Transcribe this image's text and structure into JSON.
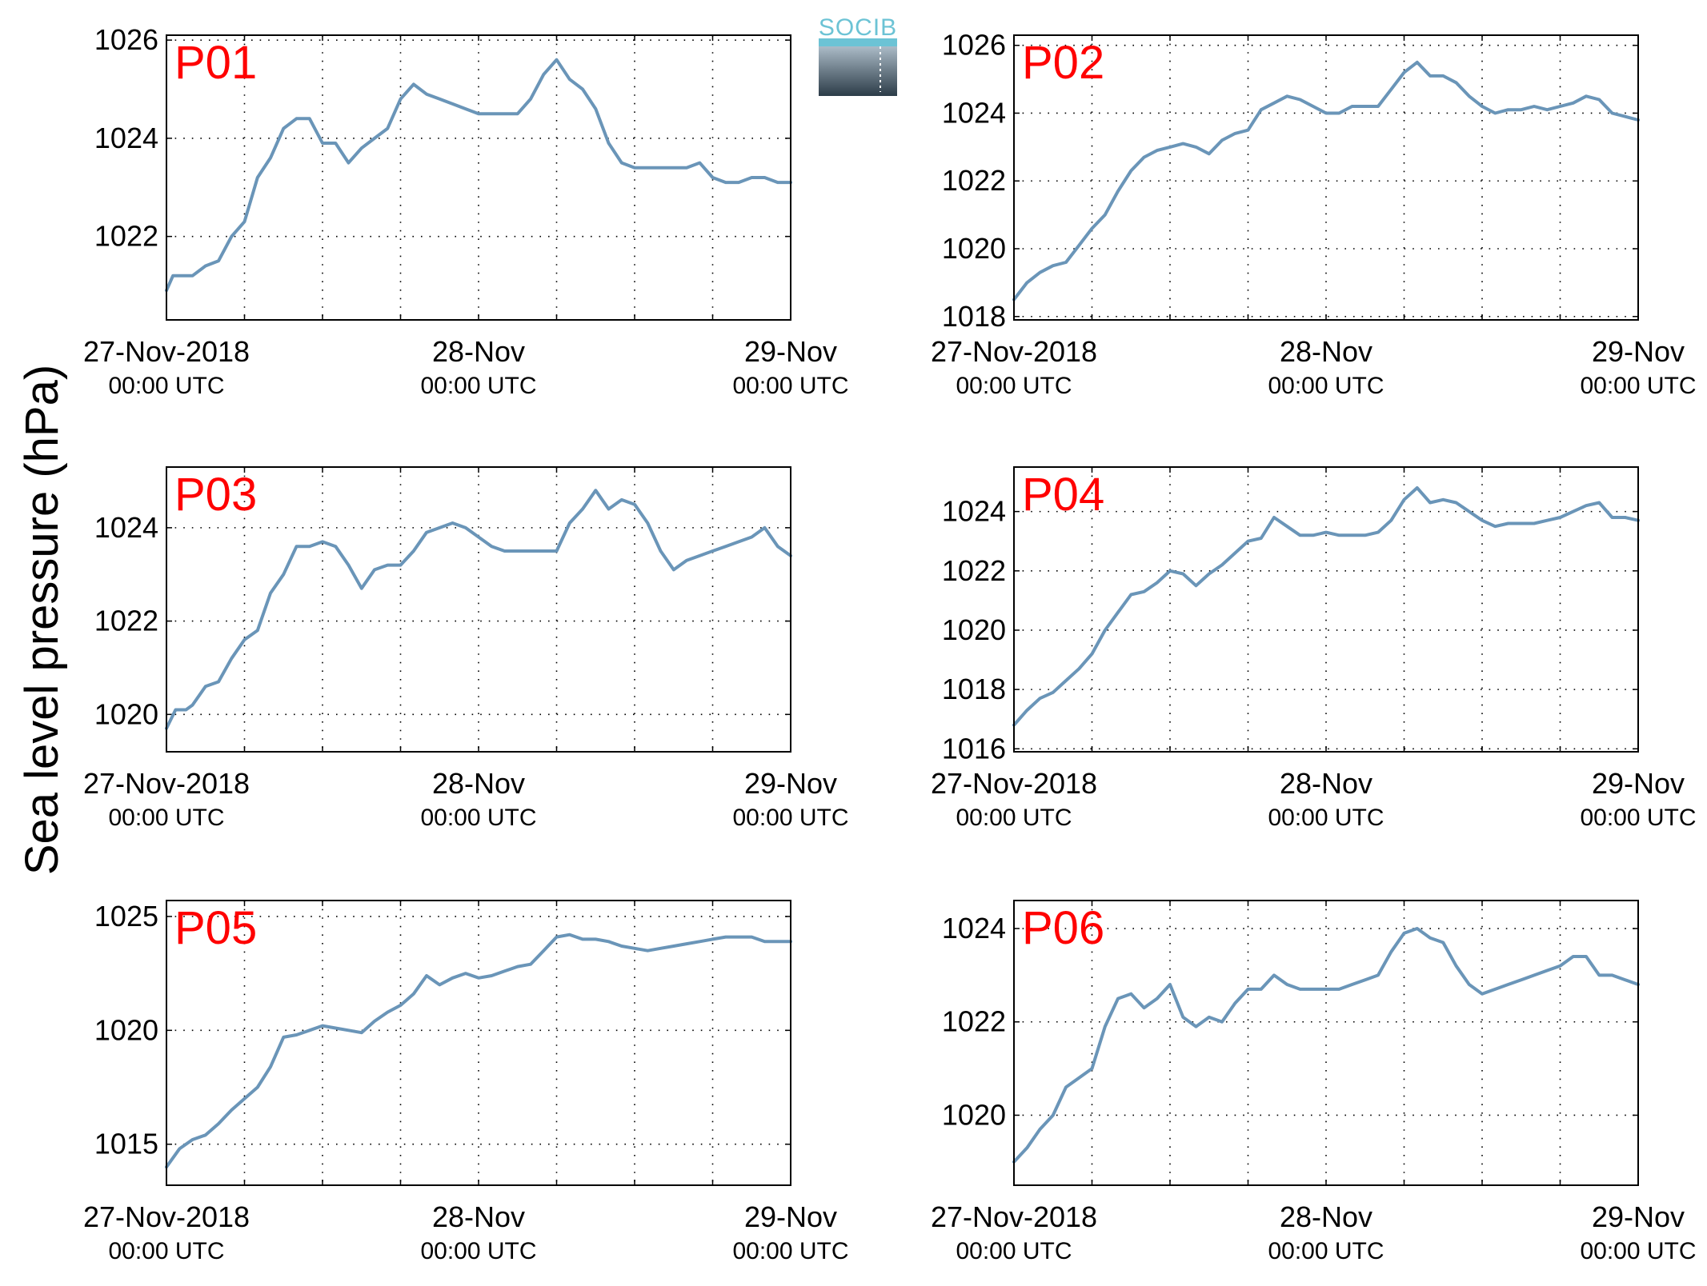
{
  "figure": {
    "ylabel": "Sea level pressure (hPa)",
    "logo_text": "SOCIB",
    "series_color": "#6a95b8",
    "panel_label_color": "#ff0000"
  },
  "chart_data": [
    {
      "type": "line",
      "name": "P01",
      "xlabels": [
        {
          "date": "27-Nov-2018",
          "time": "00:00 UTC"
        },
        {
          "date": "28-Nov",
          "time": "00:00 UTC"
        },
        {
          "date": "29-Nov",
          "time": "00:00 UTC"
        }
      ],
      "xlim_hours": [
        0,
        48
      ],
      "ylim": [
        1020.3,
        1026.1
      ],
      "yticks": [
        1022,
        1024,
        1026
      ],
      "grid": true,
      "x": [
        0,
        0.5,
        1,
        2,
        3,
        4,
        5,
        6,
        7,
        8,
        9,
        10,
        11,
        12,
        13,
        14,
        15,
        16,
        17,
        18,
        19,
        20,
        21,
        22,
        23,
        24,
        25,
        26,
        27,
        28,
        29,
        30,
        31,
        32,
        33,
        34,
        35,
        36,
        37,
        38,
        39,
        40,
        41,
        42,
        43,
        44,
        45,
        46,
        47,
        48
      ],
      "y": [
        1020.9,
        1021.2,
        1021.2,
        1021.2,
        1021.4,
        1021.5,
        1022.0,
        1022.3,
        1023.2,
        1023.6,
        1024.2,
        1024.4,
        1024.4,
        1023.9,
        1023.9,
        1023.5,
        1023.8,
        1024.0,
        1024.2,
        1024.8,
        1025.1,
        1024.9,
        1024.8,
        1024.7,
        1024.6,
        1024.5,
        1024.5,
        1024.5,
        1024.5,
        1024.8,
        1025.3,
        1025.6,
        1025.2,
        1025.0,
        1024.6,
        1023.9,
        1023.5,
        1023.4,
        1023.4,
        1023.4,
        1023.4,
        1023.4,
        1023.5,
        1023.2,
        1023.1,
        1023.1,
        1023.2,
        1023.2,
        1023.1,
        1023.1
      ]
    },
    {
      "type": "line",
      "name": "P02",
      "xlabels": [
        {
          "date": "27-Nov-2018",
          "time": "00:00 UTC"
        },
        {
          "date": "28-Nov",
          "time": "00:00 UTC"
        },
        {
          "date": "29-Nov",
          "time": "00:00 UTC"
        }
      ],
      "xlim_hours": [
        0,
        48
      ],
      "ylim": [
        1017.9,
        1026.3
      ],
      "yticks": [
        1018,
        1020,
        1022,
        1024,
        1026
      ],
      "grid": true,
      "x": [
        0,
        1,
        2,
        3,
        4,
        5,
        6,
        7,
        8,
        9,
        10,
        11,
        12,
        13,
        14,
        15,
        16,
        17,
        18,
        19,
        20,
        21,
        22,
        23,
        24,
        25,
        26,
        27,
        28,
        29,
        30,
        31,
        32,
        33,
        34,
        35,
        36,
        37,
        38,
        39,
        40,
        41,
        42,
        43,
        44,
        45,
        46,
        47,
        48
      ],
      "y": [
        1018.5,
        1019.0,
        1019.3,
        1019.5,
        1019.6,
        1020.1,
        1020.6,
        1021.0,
        1021.7,
        1022.3,
        1022.7,
        1022.9,
        1023.0,
        1023.1,
        1023.0,
        1022.8,
        1023.2,
        1023.4,
        1023.5,
        1024.1,
        1024.3,
        1024.5,
        1024.4,
        1024.2,
        1024.0,
        1024.0,
        1024.2,
        1024.2,
        1024.2,
        1024.7,
        1025.2,
        1025.5,
        1025.1,
        1025.1,
        1024.9,
        1024.5,
        1024.2,
        1024.0,
        1024.1,
        1024.1,
        1024.2,
        1024.1,
        1024.2,
        1024.3,
        1024.5,
        1024.4,
        1024.0,
        1023.9,
        1023.8
      ]
    },
    {
      "type": "line",
      "name": "P03",
      "xlabels": [
        {
          "date": "27-Nov-2018",
          "time": "00:00 UTC"
        },
        {
          "date": "28-Nov",
          "time": "00:00 UTC"
        },
        {
          "date": "29-Nov",
          "time": "00:00 UTC"
        }
      ],
      "xlim_hours": [
        0,
        48
      ],
      "ylim": [
        1019.2,
        1025.3
      ],
      "yticks": [
        1020,
        1022,
        1024
      ],
      "grid": true,
      "x": [
        0,
        0.7,
        1.5,
        2,
        3,
        4,
        5,
        6,
        7,
        8,
        9,
        10,
        11,
        12,
        13,
        14,
        15,
        16,
        17,
        18,
        19,
        20,
        21,
        22,
        23,
        24,
        25,
        26,
        27,
        28,
        29,
        30,
        31,
        32,
        33,
        34,
        35,
        36,
        37,
        38,
        39,
        40,
        41,
        42,
        43,
        44,
        45,
        46,
        47,
        48
      ],
      "y": [
        1019.7,
        1020.1,
        1020.1,
        1020.2,
        1020.6,
        1020.7,
        1021.2,
        1021.6,
        1021.8,
        1022.6,
        1023.0,
        1023.6,
        1023.6,
        1023.7,
        1023.6,
        1023.2,
        1022.7,
        1023.1,
        1023.2,
        1023.2,
        1023.5,
        1023.9,
        1024.0,
        1024.1,
        1024.0,
        1023.8,
        1023.6,
        1023.5,
        1023.5,
        1023.5,
        1023.5,
        1023.5,
        1024.1,
        1024.4,
        1024.8,
        1024.4,
        1024.6,
        1024.5,
        1024.1,
        1023.5,
        1023.1,
        1023.3,
        1023.4,
        1023.5,
        1023.6,
        1023.7,
        1023.8,
        1024.0,
        1023.6,
        1023.4
      ]
    },
    {
      "type": "line",
      "name": "P04",
      "xlabels": [
        {
          "date": "27-Nov-2018",
          "time": "00:00 UTC"
        },
        {
          "date": "28-Nov",
          "time": "00:00 UTC"
        },
        {
          "date": "29-Nov",
          "time": "00:00 UTC"
        }
      ],
      "xlim_hours": [
        0,
        48
      ],
      "ylim": [
        1015.9,
        1025.5
      ],
      "yticks": [
        1016,
        1018,
        1020,
        1022,
        1024
      ],
      "grid": true,
      "x": [
        0,
        1,
        2,
        3,
        4,
        5,
        6,
        7,
        8,
        9,
        10,
        11,
        12,
        13,
        14,
        15,
        16,
        17,
        18,
        19,
        20,
        21,
        22,
        23,
        24,
        25,
        26,
        27,
        28,
        29,
        30,
        31,
        32,
        33,
        34,
        35,
        36,
        37,
        38,
        39,
        40,
        41,
        42,
        43,
        44,
        45,
        46,
        47,
        48
      ],
      "y": [
        1016.8,
        1017.3,
        1017.7,
        1017.9,
        1018.3,
        1018.7,
        1019.2,
        1020.0,
        1020.6,
        1021.2,
        1021.3,
        1021.6,
        1022.0,
        1021.9,
        1021.5,
        1021.9,
        1022.2,
        1022.6,
        1023.0,
        1023.1,
        1023.8,
        1023.5,
        1023.2,
        1023.2,
        1023.3,
        1023.2,
        1023.2,
        1023.2,
        1023.3,
        1023.7,
        1024.4,
        1024.8,
        1024.3,
        1024.4,
        1024.3,
        1024.0,
        1023.7,
        1023.5,
        1023.6,
        1023.6,
        1023.6,
        1023.7,
        1023.8,
        1024.0,
        1024.2,
        1024.3,
        1023.8,
        1023.8,
        1023.7
      ]
    },
    {
      "type": "line",
      "name": "P05",
      "xlabels": [
        {
          "date": "27-Nov-2018",
          "time": "00:00 UTC"
        },
        {
          "date": "28-Nov",
          "time": "00:00 UTC"
        },
        {
          "date": "29-Nov",
          "time": "00:00 UTC"
        }
      ],
      "xlim_hours": [
        0,
        48
      ],
      "ylim": [
        1013.2,
        1025.7
      ],
      "yticks": [
        1015,
        1020,
        1025
      ],
      "grid": true,
      "x": [
        0,
        1,
        2,
        3,
        4,
        5,
        6,
        7,
        8,
        9,
        10,
        11,
        12,
        13,
        14,
        15,
        16,
        17,
        18,
        19,
        20,
        21,
        22,
        23,
        24,
        25,
        26,
        27,
        28,
        29,
        30,
        31,
        32,
        33,
        34,
        35,
        36,
        37,
        38,
        39,
        40,
        41,
        42,
        43,
        44,
        45,
        46,
        47,
        48
      ],
      "y": [
        1014.0,
        1014.8,
        1015.2,
        1015.4,
        1015.9,
        1016.5,
        1017.0,
        1017.5,
        1018.4,
        1019.7,
        1019.8,
        1020.0,
        1020.2,
        1020.1,
        1020.0,
        1019.9,
        1020.4,
        1020.8,
        1021.1,
        1021.6,
        1022.4,
        1022.0,
        1022.3,
        1022.5,
        1022.3,
        1022.4,
        1022.6,
        1022.8,
        1022.9,
        1023.5,
        1024.1,
        1024.2,
        1024.0,
        1024.0,
        1023.9,
        1023.7,
        1023.6,
        1023.5,
        1023.6,
        1023.7,
        1023.8,
        1023.9,
        1024.0,
        1024.1,
        1024.1,
        1024.1,
        1023.9,
        1023.9,
        1023.9
      ]
    },
    {
      "type": "line",
      "name": "P06",
      "xlabels": [
        {
          "date": "27-Nov-2018",
          "time": "00:00 UTC"
        },
        {
          "date": "28-Nov",
          "time": "00:00 UTC"
        },
        {
          "date": "29-Nov",
          "time": "00:00 UTC"
        }
      ],
      "xlim_hours": [
        0,
        48
      ],
      "ylim": [
        1018.5,
        1024.6
      ],
      "yticks": [
        1020,
        1022,
        1024
      ],
      "grid": true,
      "x": [
        0,
        1,
        2,
        3,
        4,
        5,
        6,
        7,
        8,
        9,
        10,
        11,
        12,
        13,
        14,
        15,
        16,
        17,
        18,
        19,
        20,
        21,
        22,
        23,
        24,
        25,
        26,
        27,
        28,
        29,
        30,
        31,
        32,
        33,
        34,
        35,
        36,
        37,
        38,
        39,
        40,
        41,
        42,
        43,
        44,
        45,
        46,
        47,
        48
      ],
      "y": [
        1019.0,
        1019.3,
        1019.7,
        1020.0,
        1020.6,
        1020.8,
        1021.0,
        1021.9,
        1022.5,
        1022.6,
        1022.3,
        1022.5,
        1022.8,
        1022.1,
        1021.9,
        1022.1,
        1022.0,
        1022.4,
        1022.7,
        1022.7,
        1023.0,
        1022.8,
        1022.7,
        1022.7,
        1022.7,
        1022.7,
        1022.8,
        1022.9,
        1023.0,
        1023.5,
        1023.9,
        1024.0,
        1023.8,
        1023.7,
        1023.2,
        1022.8,
        1022.6,
        1022.7,
        1022.8,
        1022.9,
        1023.0,
        1023.1,
        1023.2,
        1023.4,
        1023.4,
        1023.0,
        1023.0,
        1022.9,
        1022.8
      ]
    }
  ]
}
